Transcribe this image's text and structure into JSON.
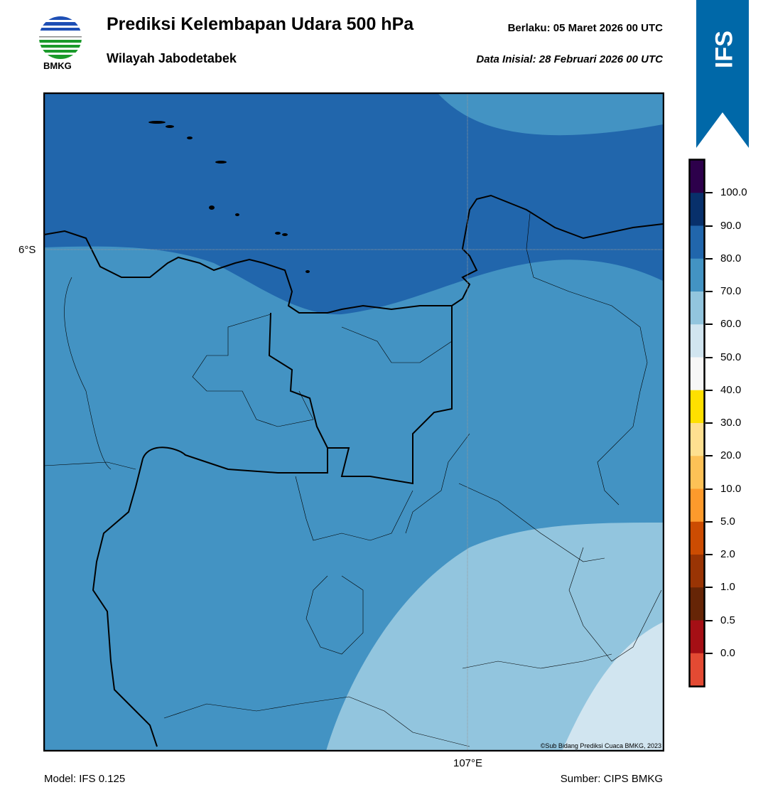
{
  "header": {
    "title": "Prediksi Kelembapan Udara 500 hPa",
    "subtitle": "Wilayah Jabodetabek",
    "valid": "Berlaku:  05 Maret 2026 00 UTC",
    "init": "Data Inisial:  28 Februari 2026 00 UTC",
    "logo_text": "BMKG",
    "badge": "IFS"
  },
  "map": {
    "lat_label": "6°S",
    "lon_label": "107°E",
    "credit": "©Sub Bidang Prediksi Cuaca BMKG, 2023"
  },
  "colorbar": {
    "labels": [
      "100.0",
      "90.0",
      "80.0",
      "70.0",
      "60.0",
      "50.0",
      "40.0",
      "30.0",
      "20.0",
      "10.0",
      "5.0",
      "2.0",
      "1.0",
      "0.5",
      "0.0"
    ],
    "colors": [
      "#2d004b",
      "#08306b",
      "#2166ac",
      "#4393c3",
      "#92c5de",
      "#d1e5f0",
      "#f7f7f7",
      "#fee000",
      "#fee090",
      "#fdc156",
      "#fd9a2c",
      "#cc4c02",
      "#993404",
      "#662506",
      "#a50f15",
      "#e34a33"
    ]
  },
  "footer": {
    "model": "Model: IFS 0.125",
    "source": "Sumber: CIPS BMKG"
  }
}
